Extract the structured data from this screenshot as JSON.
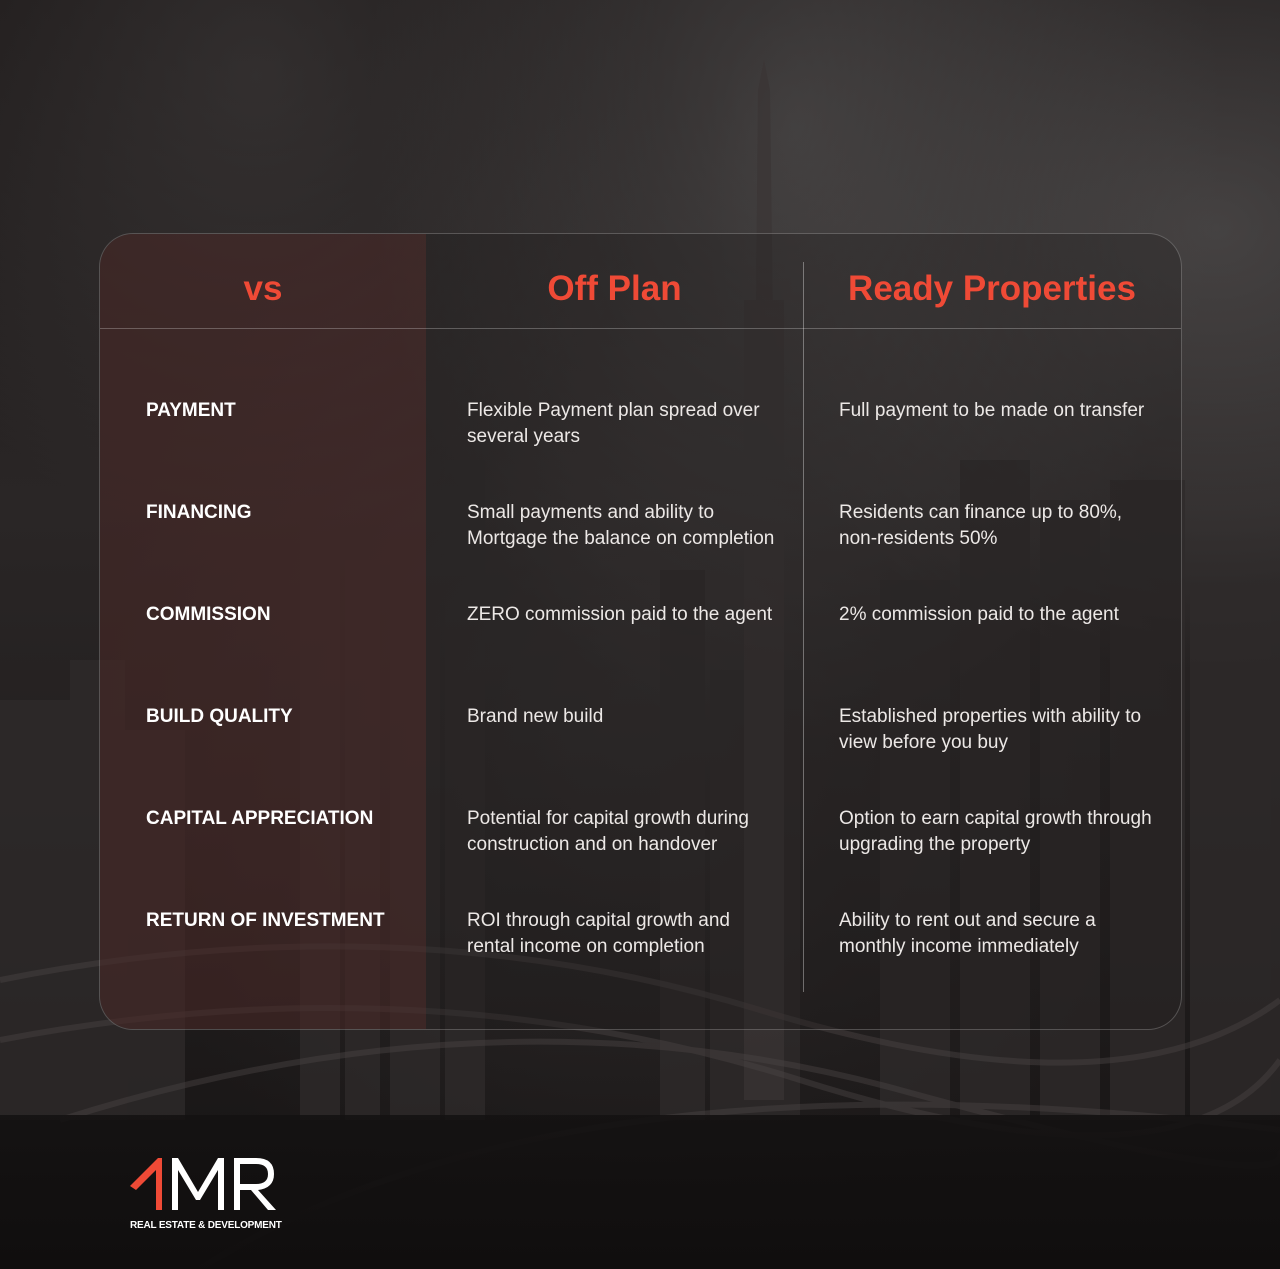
{
  "table": {
    "header": {
      "vs": "vs",
      "off_plan": "Off Plan",
      "ready": "Ready Properties"
    },
    "rows": [
      {
        "label": "PAYMENT",
        "off_plan": "Flexible Payment plan spread over several years",
        "ready": "Full payment to be made on transfer"
      },
      {
        "label": "FINANCING",
        "off_plan": "Small payments and ability to Mortgage the balance on completion",
        "ready": "Residents can finance up to 80%, non-residents 50%"
      },
      {
        "label": "COMMISSION",
        "off_plan": "ZERO commission paid to the agent",
        "ready": "2% commission paid to the agent"
      },
      {
        "label": "BUILD QUALITY",
        "off_plan": "Brand new build",
        "ready": "Established properties with ability to view before you buy"
      },
      {
        "label": "CAPITAL APPRECIATION",
        "off_plan": "Potential for capital growth during construction and on handover",
        "ready": "Option to earn capital growth through upgrading the property"
      },
      {
        "label": "RETURN OF INVESTMENT",
        "off_plan": "ROI through capital growth and rental income on completion",
        "ready": "Ability to rent out and secure a monthly income immediately"
      }
    ]
  },
  "logo": {
    "mark": "1MR",
    "tagline": "REAL ESTATE & DEVELOPMENT"
  },
  "colors": {
    "accent": "#ef4a36",
    "text": "#ffffff",
    "background": "#1e1a1a"
  }
}
